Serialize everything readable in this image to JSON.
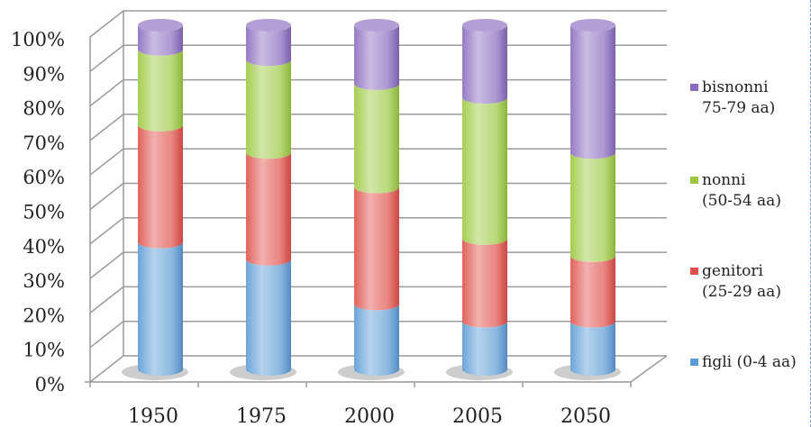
{
  "chart_data": {
    "type": "bar",
    "stacked": true,
    "style": "3d-cylinder",
    "categories": [
      "1950",
      "1975",
      "2000",
      "2005",
      "2050"
    ],
    "series": [
      {
        "name": "figli (0-4 aa)",
        "legend_lines": [
          "figli (0-4 aa)"
        ],
        "color": "#5b9bd5",
        "values": [
          37,
          32,
          19,
          14,
          14
        ]
      },
      {
        "name": "genitori (25-29 aa)",
        "legend_lines": [
          "genitori",
          "(25-29 aa)"
        ],
        "color": "#e0504a",
        "values": [
          34,
          31,
          34,
          24,
          19
        ]
      },
      {
        "name": "nonni (50-54 aa)",
        "legend_lines": [
          "nonni",
          "(50-54 aa)"
        ],
        "color": "#9bc83f",
        "values": [
          22,
          27,
          30,
          41,
          30
        ]
      },
      {
        "name": "bisnonni 75-79 aa)",
        "legend_lines": [
          "bisnonni",
          "75-79 aa)"
        ],
        "color": "#8a6bbf",
        "values": [
          7,
          10,
          17,
          21,
          37
        ]
      }
    ],
    "y_ticks": [
      "0%",
      "10%",
      "20%",
      "30%",
      "40%",
      "50%",
      "60%",
      "70%",
      "80%",
      "90%",
      "100%"
    ],
    "ylim": [
      0,
      100
    ],
    "grid": true,
    "legend_position": "right",
    "title": "",
    "xlabel": "",
    "ylabel": ""
  }
}
